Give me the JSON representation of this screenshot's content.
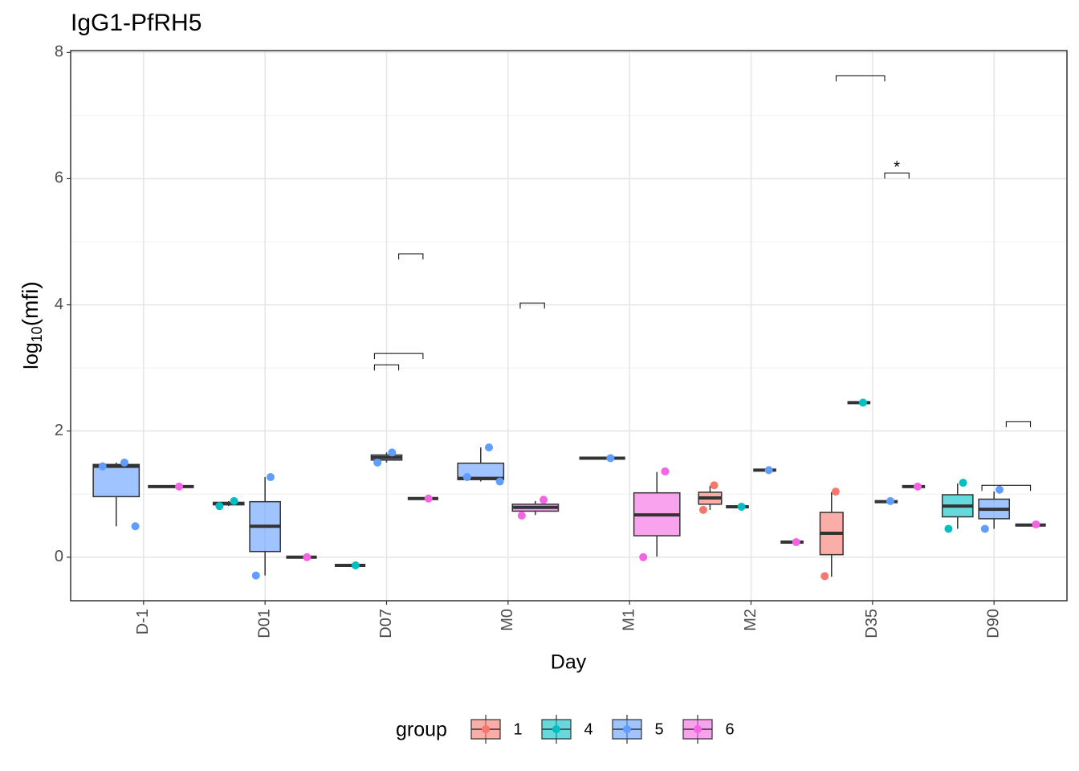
{
  "chart_data": {
    "type": "box",
    "title": "IgG1-PfRH5",
    "xlabel": "Day",
    "ylabel": [
      "log",
      "10",
      "(mfi)"
    ],
    "legend_title": "group",
    "legend_position": "bottom",
    "groups": [
      {
        "name": "1",
        "color": "#F8766D"
      },
      {
        "name": "4",
        "color": "#00BFC4"
      },
      {
        "name": "5",
        "color": "#619CFF"
      },
      {
        "name": "6",
        "color": "#F564E3"
      }
    ],
    "categories": [
      "D-1",
      "D01",
      "D07",
      "M0",
      "M1",
      "M2",
      "D35",
      "D90"
    ],
    "ylim": [
      -0.69,
      8.03
    ],
    "yticks": [
      0,
      2,
      4,
      6,
      8
    ],
    "minor_yticks": [
      1,
      3,
      5,
      7
    ],
    "grid": true,
    "boxes": [
      {
        "day": "D-1",
        "group": "5",
        "min": 0.49,
        "q1": 0.96,
        "median": 1.44,
        "q3": 1.47,
        "max": 1.5,
        "points": [
          1.5,
          1.44,
          0.49
        ]
      },
      {
        "day": "D-1",
        "group": "6",
        "min": 1.12,
        "q1": 1.12,
        "median": 1.12,
        "q3": 1.12,
        "max": 1.12,
        "points": [
          1.12
        ]
      },
      {
        "day": "D01",
        "group": "4",
        "min": 0.81,
        "q1": 0.83,
        "median": 0.85,
        "q3": 0.87,
        "max": 0.89,
        "points": [
          0.89,
          0.81
        ]
      },
      {
        "day": "D01",
        "group": "5",
        "min": -0.29,
        "q1": 0.09,
        "median": 0.49,
        "q3": 0.88,
        "max": 1.27,
        "points": [
          1.27,
          -0.29
        ]
      },
      {
        "day": "D01",
        "group": "6",
        "min": 0.0,
        "q1": 0.0,
        "median": 0.0,
        "q3": 0.0,
        "max": 0.0,
        "points": [
          0.0
        ]
      },
      {
        "day": "D07",
        "group": "4",
        "min": -0.13,
        "q1": -0.13,
        "median": -0.13,
        "q3": -0.13,
        "max": -0.13,
        "points": [
          -0.13
        ]
      },
      {
        "day": "D07",
        "group": "5",
        "min": 1.5,
        "q1": 1.54,
        "median": 1.58,
        "q3": 1.62,
        "max": 1.66,
        "points": [
          1.66,
          1.5
        ]
      },
      {
        "day": "D07",
        "group": "6",
        "min": 0.93,
        "q1": 0.93,
        "median": 0.93,
        "q3": 0.93,
        "max": 0.93,
        "points": [
          0.93
        ]
      },
      {
        "day": "M0",
        "group": "5",
        "min": 1.2,
        "q1": 1.23,
        "median": 1.25,
        "q3": 1.49,
        "max": 1.74,
        "points": [
          1.74,
          1.27,
          1.2
        ]
      },
      {
        "day": "M0",
        "group": "6",
        "min": 0.67,
        "q1": 0.73,
        "median": 0.79,
        "q3": 0.84,
        "max": 0.89,
        "points": [
          0.91,
          0.66
        ]
      },
      {
        "day": "M1",
        "group": "5",
        "min": 1.57,
        "q1": 1.57,
        "median": 1.57,
        "q3": 1.57,
        "max": 1.57,
        "points": [
          1.57
        ]
      },
      {
        "day": "M1",
        "group": "6",
        "min": 0.01,
        "q1": 0.34,
        "median": 0.67,
        "q3": 1.02,
        "max": 1.35,
        "points": [
          1.36,
          0.0
        ]
      },
      {
        "day": "M2",
        "group": "1",
        "min": 0.75,
        "q1": 0.84,
        "median": 0.94,
        "q3": 1.03,
        "max": 1.13,
        "points": [
          1.14,
          0.75
        ]
      },
      {
        "day": "M2",
        "group": "4",
        "min": 0.8,
        "q1": 0.8,
        "median": 0.8,
        "q3": 0.8,
        "max": 0.8,
        "points": [
          0.8
        ]
      },
      {
        "day": "M2",
        "group": "5",
        "min": 1.38,
        "q1": 1.38,
        "median": 1.38,
        "q3": 1.38,
        "max": 1.38,
        "points": [
          1.38
        ]
      },
      {
        "day": "M2",
        "group": "6",
        "min": 0.24,
        "q1": 0.24,
        "median": 0.24,
        "q3": 0.24,
        "max": 0.24,
        "points": [
          0.24
        ]
      },
      {
        "day": "D35",
        "group": "1",
        "min": -0.31,
        "q1": 0.04,
        "median": 0.38,
        "q3": 0.71,
        "max": 1.03,
        "points": [
          1.04,
          -0.3
        ]
      },
      {
        "day": "D35",
        "group": "4",
        "min": 2.45,
        "q1": 2.45,
        "median": 2.45,
        "q3": 2.45,
        "max": 2.45,
        "points": [
          2.45
        ]
      },
      {
        "day": "D35",
        "group": "5",
        "min": 0.88,
        "q1": 0.88,
        "median": 0.88,
        "q3": 0.88,
        "max": 0.88,
        "points": [
          0.89
        ]
      },
      {
        "day": "D35",
        "group": "6",
        "min": 1.12,
        "q1": 1.12,
        "median": 1.12,
        "q3": 1.12,
        "max": 1.12,
        "points": [
          1.12
        ]
      },
      {
        "day": "D90",
        "group": "4",
        "min": 0.45,
        "q1": 0.64,
        "median": 0.81,
        "q3": 0.99,
        "max": 1.17,
        "points": [
          1.18,
          0.45
        ]
      },
      {
        "day": "D90",
        "group": "5",
        "min": 0.45,
        "q1": 0.61,
        "median": 0.76,
        "q3": 0.92,
        "max": 1.04,
        "points": [
          1.07,
          0.45
        ]
      },
      {
        "day": "D90",
        "group": "6",
        "min": 0.51,
        "q1": 0.51,
        "median": 0.51,
        "q3": 0.51,
        "max": 0.51,
        "points": [
          0.52
        ]
      }
    ],
    "comparisons": [
      {
        "day": "D07",
        "groups": [
          "4",
          "5"
        ],
        "y": 3.05
      },
      {
        "day": "D07",
        "groups": [
          "4",
          "6"
        ],
        "y": 3.23
      },
      {
        "day": "D07",
        "groups": [
          "5",
          "6"
        ],
        "y": 4.81
      },
      {
        "day": "M0",
        "groups": [
          "5",
          "6"
        ],
        "y": 4.03
      },
      {
        "day": "D35",
        "groups": [
          "1",
          "5"
        ],
        "y": 7.63
      },
      {
        "day": "D35",
        "groups": [
          "5",
          "6"
        ],
        "y": 6.09,
        "label": "*"
      },
      {
        "day": "D90",
        "groups": [
          "4",
          "6"
        ],
        "y": 1.14
      },
      {
        "day": "D90",
        "groups": [
          "5",
          "6"
        ],
        "y": 2.15
      }
    ]
  }
}
